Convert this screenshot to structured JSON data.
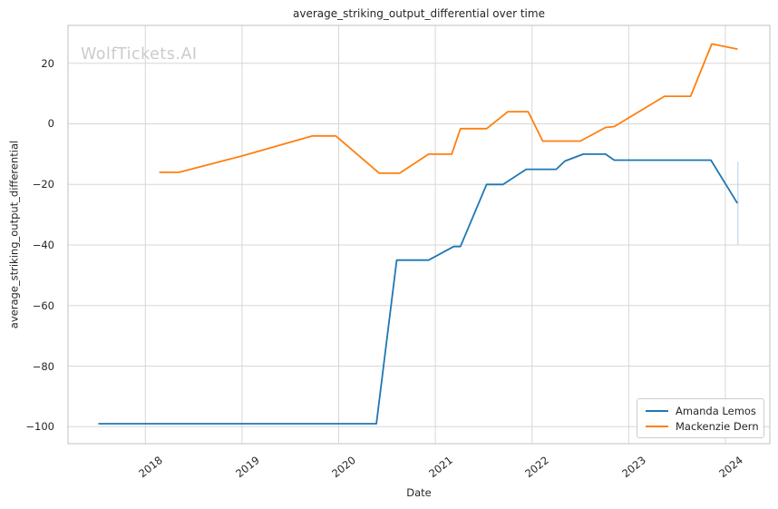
{
  "chart_data": {
    "type": "line",
    "title": "average_striking_output_differential over time",
    "xlabel": "Date",
    "ylabel": "average_striking_output_differential",
    "watermark": "WolfTickets.AI",
    "grid": true,
    "legend": {
      "position": "lower right"
    },
    "x_axis": {
      "ticks": [
        2018,
        2019,
        2020,
        2021,
        2022,
        2023,
        2024
      ],
      "tick_labels": [
        "2018",
        "2019",
        "2020",
        "2021",
        "2022",
        "2023",
        "2024"
      ],
      "lim": [
        2017.2,
        2024.46
      ]
    },
    "y_axis": {
      "ticks": [
        20,
        0,
        -20,
        -40,
        -60,
        -80,
        -100
      ],
      "tick_labels": [
        "20",
        "0",
        "−20",
        "−40",
        "−60",
        "−80",
        "−100"
      ],
      "lim": [
        -105.6,
        32.5
      ]
    },
    "series": [
      {
        "name": "Amanda Lemos",
        "color": "#1f77b4",
        "x": [
          2017.52,
          2020.39,
          2020.6,
          2020.93,
          2021.19,
          2021.26,
          2021.53,
          2021.7,
          2021.94,
          2022.25,
          2022.34,
          2022.53,
          2022.76,
          2022.85,
          2023.85,
          2024.12
        ],
        "y": [
          -99,
          -99,
          -45,
          -45,
          -40.5,
          -40.5,
          -20,
          -20,
          -15,
          -15,
          -12.3,
          -10,
          -10,
          -12,
          -12,
          -26
        ]
      },
      {
        "name": "Mackenzie Dern",
        "color": "#ff7f0e",
        "x": [
          2018.15,
          2018.35,
          2019.0,
          2019.73,
          2019.97,
          2020.42,
          2020.63,
          2020.93,
          2021.17,
          2021.26,
          2021.53,
          2021.75,
          2021.96,
          2022.11,
          2022.5,
          2022.76,
          2022.85,
          2023.37,
          2023.64,
          2023.86,
          2024.12
        ],
        "y": [
          -16,
          -16,
          -10.6,
          -4,
          -4,
          -16.3,
          -16.3,
          -10,
          -10,
          -1.6,
          -1.6,
          4,
          4,
          -5.7,
          -5.7,
          -1.2,
          -0.9,
          9.1,
          9.1,
          26.4,
          24.7
        ]
      }
    ],
    "annotations": [
      {
        "type": "vertical-segment",
        "x": 2024.13,
        "y_from": -12.4,
        "y_to": -40.0,
        "color": "#bcd9ec"
      }
    ],
    "style": {
      "grid_color": "#d7d7d7",
      "spine_color": "#cacaca",
      "text_color": "#262626",
      "watermark_color": "#cbcbcb",
      "line_width": 1.8
    }
  }
}
